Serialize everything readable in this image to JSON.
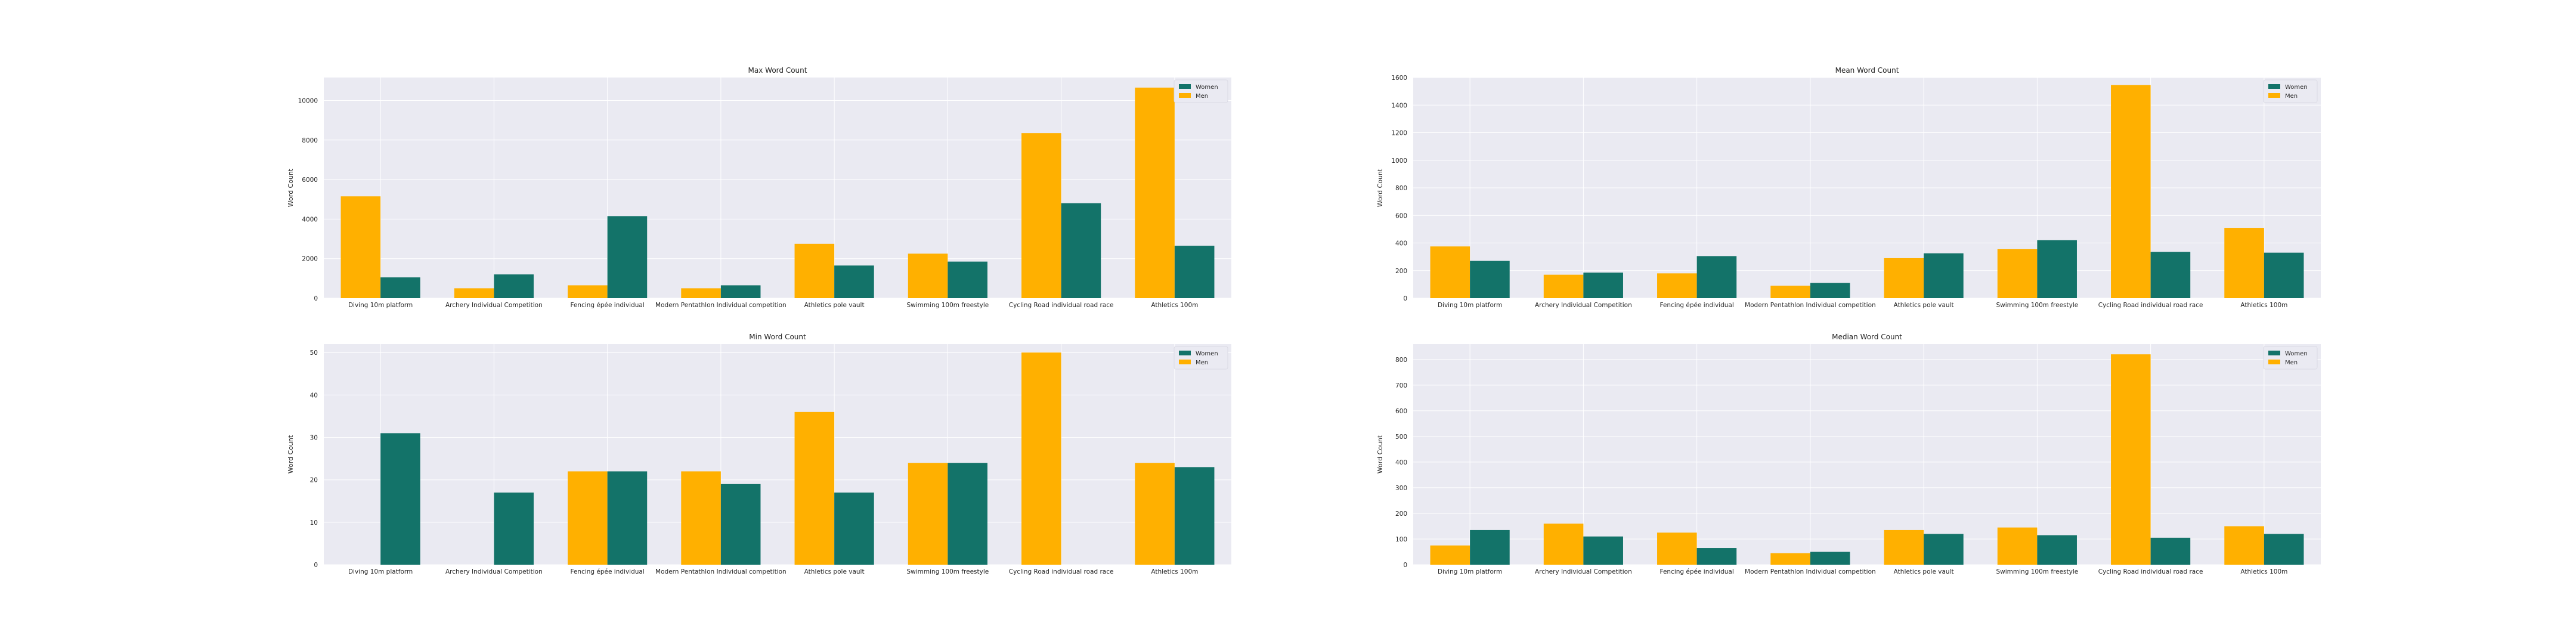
{
  "colors": {
    "women": "#137369",
    "men": "#FFB000",
    "plot_bg": "#EAEAF2",
    "grid": "#FFFFFF",
    "text": "#262626"
  },
  "legend": {
    "placement": "top-right",
    "entries": [
      "Women",
      "Men"
    ]
  },
  "chart_data": [
    {
      "type": "bar",
      "title": "Max Word Count",
      "xlabel": "",
      "ylabel": "Word Count",
      "categories": [
        "Diving 10m platform",
        "Archery Individual Competition",
        "Fencing épée individual",
        "Modern Pentathlon Individual competition",
        "Athletics pole vault",
        "Swimming 100m freestyle",
        "Cycling Road individual road race",
        "Athletics 100m"
      ],
      "series": [
        {
          "name": "Men",
          "values": [
            5150,
            500,
            650,
            500,
            2750,
            2250,
            8350,
            10650
          ]
        },
        {
          "name": "Women",
          "values": [
            1050,
            1200,
            4150,
            650,
            1650,
            1850,
            4800,
            2650
          ]
        }
      ],
      "ylim": [
        0,
        11160
      ],
      "yticks": [
        0,
        2000,
        4000,
        6000,
        8000,
        10000
      ],
      "grid": true,
      "legend": "top-right"
    },
    {
      "type": "bar",
      "title": "Mean Word Count",
      "xlabel": "",
      "ylabel": "Word Count",
      "categories": [
        "Diving 10m platform",
        "Archery Individual Competition",
        "Fencing épée individual",
        "Modern Pentathlon Individual competition",
        "Athletics pole vault",
        "Swimming 100m freestyle",
        "Cycling Road individual road race",
        "Athletics 100m"
      ],
      "series": [
        {
          "name": "Men",
          "values": [
            375,
            170,
            180,
            90,
            290,
            355,
            1545,
            510
          ]
        },
        {
          "name": "Women",
          "values": [
            270,
            185,
            305,
            110,
            325,
            420,
            335,
            330
          ]
        }
      ],
      "ylim": [
        0,
        1600
      ],
      "yticks": [
        0,
        200,
        400,
        600,
        800,
        1000,
        1200,
        1400,
        1600
      ],
      "grid": true,
      "legend": "top-right"
    },
    {
      "type": "bar",
      "title": "Min Word Count",
      "xlabel": "",
      "ylabel": "Word Count",
      "categories": [
        "Diving 10m platform",
        "Archery Individual Competition",
        "Fencing épée individual",
        "Modern Pentathlon Individual competition",
        "Athletics pole vault",
        "Swimming 100m freestyle",
        "Cycling Road individual road race",
        "Athletics 100m"
      ],
      "series": [
        {
          "name": "Men",
          "values": [
            0,
            0,
            22,
            22,
            36,
            24,
            50,
            24
          ]
        },
        {
          "name": "Women",
          "values": [
            31,
            17,
            22,
            19,
            17,
            24,
            0,
            23
          ]
        }
      ],
      "ylim": [
        0,
        52
      ],
      "yticks": [
        0,
        10,
        20,
        30,
        40,
        50
      ],
      "grid": true,
      "legend": "top-right"
    },
    {
      "type": "bar",
      "title": "Median Word Count",
      "xlabel": "",
      "ylabel": "Word Count",
      "categories": [
        "Diving 10m platform",
        "Archery Individual Competition",
        "Fencing épée individual",
        "Modern Pentathlon Individual competition",
        "Athletics pole vault",
        "Swimming 100m freestyle",
        "Cycling Road individual road race",
        "Athletics 100m"
      ],
      "series": [
        {
          "name": "Men",
          "values": [
            75,
            160,
            125,
            45,
            135,
            145,
            820,
            150
          ]
        },
        {
          "name": "Women",
          "values": [
            135,
            110,
            65,
            50,
            120,
            115,
            105,
            120
          ]
        }
      ],
      "ylim": [
        0,
        860
      ],
      "yticks": [
        0,
        100,
        200,
        300,
        400,
        500,
        600,
        700,
        800
      ],
      "grid": true,
      "legend": "top-right"
    }
  ]
}
